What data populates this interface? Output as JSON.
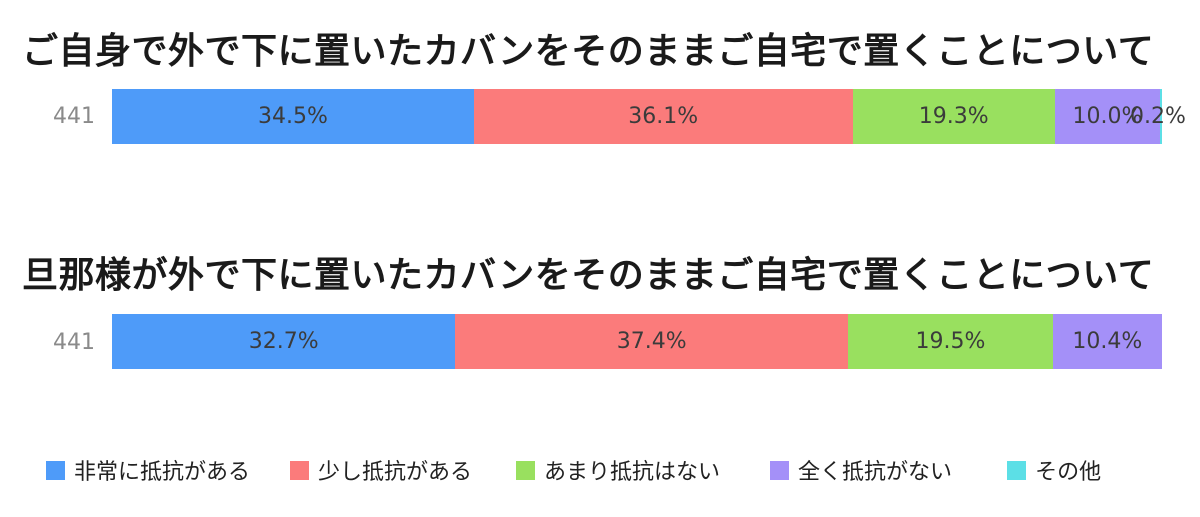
{
  "chart_data": [
    {
      "type": "bar",
      "orientation": "horizontal",
      "stacked": true,
      "title": "ご自身で外で下に置いたカバンをそのままご自宅で置くことについて",
      "row_label": "441",
      "series": [
        {
          "name": "非常に抵抗がある",
          "value": 34.5,
          "label": "34.5%"
        },
        {
          "name": "少し抵抗がある",
          "value": 36.1,
          "label": "36.1%"
        },
        {
          "name": "あまり抵抗はない",
          "value": 19.3,
          "label": "19.3%"
        },
        {
          "name": "全く抵抗がない",
          "value": 10.0,
          "label": "10.0%"
        },
        {
          "name": "その他",
          "value": 0.2,
          "label": "0.2%"
        }
      ]
    },
    {
      "type": "bar",
      "orientation": "horizontal",
      "stacked": true,
      "title": "旦那様が外で下に置いたカバンをそのままご自宅で置くことについて",
      "row_label": "441",
      "series": [
        {
          "name": "非常に抵抗がある",
          "value": 32.7,
          "label": "32.7%"
        },
        {
          "name": "少し抵抗がある",
          "value": 37.4,
          "label": "37.4%"
        },
        {
          "name": "あまり抵抗はない",
          "value": 19.5,
          "label": "19.5%"
        },
        {
          "name": "全く抵抗がない",
          "value": 10.4,
          "label": "10.4%"
        }
      ]
    }
  ],
  "legend": {
    "placement": "bottom",
    "items": [
      {
        "label": "非常に抵抗がある",
        "color": "#4e9bf9"
      },
      {
        "label": "少し抵抗がある",
        "color": "#fb7b7b"
      },
      {
        "label": "あまり抵抗はない",
        "color": "#99e05f"
      },
      {
        "label": "全く抵抗がない",
        "color": "#a490f8"
      },
      {
        "label": "その他",
        "color": "#5cdfe6"
      }
    ]
  }
}
